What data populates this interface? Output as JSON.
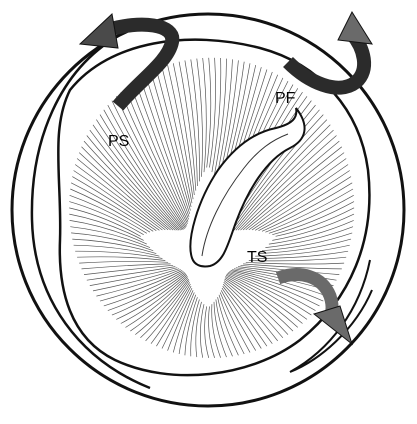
{
  "labels": {
    "ps": "PS",
    "pf": "PF",
    "ts": "TS"
  },
  "colors": {
    "background": "#ffffff",
    "outline": "#111111",
    "arrow_dark": "#2b2b2b",
    "arrow_gray": "#6a6a6a",
    "fiber": "#555555"
  },
  "icons": {
    "arrow_ps": "curved-arrow-icon",
    "arrow_pf": "curved-arrow-icon",
    "arrow_ts": "curved-arrow-icon"
  }
}
